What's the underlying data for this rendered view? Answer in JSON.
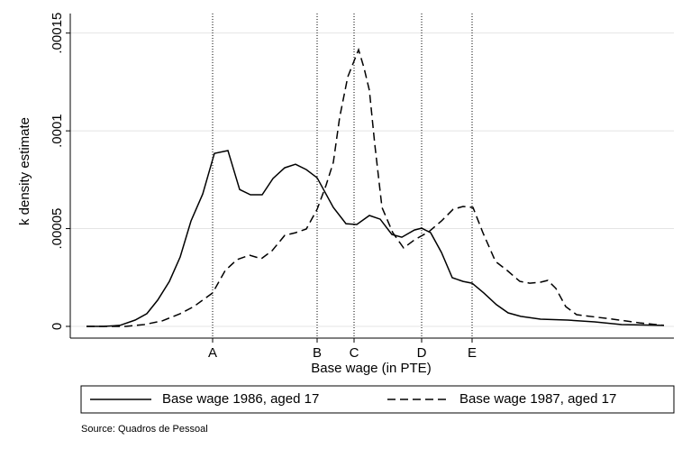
{
  "chart_data": {
    "type": "line",
    "x_label": "Base wage (in PTE)",
    "y_label": "k density estimate",
    "source": "Source: Quadros de Pessoal",
    "xlim": [
      0,
      67
    ],
    "ylim": [
      -6e-06,
      0.00016
    ],
    "xticks": [
      {
        "value": 15.8,
        "label": "A"
      },
      {
        "value": 27.4,
        "label": "B"
      },
      {
        "value": 31.5,
        "label": "C"
      },
      {
        "value": 39,
        "label": "D"
      },
      {
        "value": 44.6,
        "label": "E"
      }
    ],
    "yticks": [
      0,
      {
        "value": 5e-05,
        "label": ".00005"
      },
      {
        "value": 0.0001,
        "label": ".0001"
      },
      {
        "value": 0.00015,
        "label": ".00015"
      }
    ],
    "xgrid": true,
    "ygrid": true,
    "legend": "bottom",
    "series": [
      {
        "name": "Base wage 1986, aged 17",
        "color": "#000000",
        "line_style": "solid",
        "x": [
          1.8,
          3.7,
          5.5,
          7.2,
          8.5,
          9.7,
          11,
          12.2,
          13.4,
          14.7,
          16,
          17.5,
          18.8,
          20,
          21.3,
          22.5,
          23.8,
          25,
          26.2,
          27.4,
          29.2,
          30.6,
          31.8,
          33.2,
          34.4,
          35.7,
          36.8,
          38.2,
          39,
          40,
          41.2,
          42.4,
          43.6,
          44.6,
          45.9,
          47.3,
          48.6,
          50,
          52.2,
          55.2,
          58.2,
          61.2,
          65.9
        ],
        "values": [
          0,
          0,
          5e-07,
          3.2e-06,
          6.5e-06,
          1.34e-05,
          2.3e-05,
          3.55e-05,
          5.39e-05,
          6.77e-05,
          8.85e-05,
          8.99e-05,
          7e-05,
          6.73e-05,
          6.73e-05,
          7.56e-05,
          8.11e-05,
          8.29e-05,
          8.02e-05,
          7.6e-05,
          6.08e-05,
          5.25e-05,
          5.21e-05,
          5.67e-05,
          5.48e-05,
          4.7e-05,
          4.56e-05,
          4.93e-05,
          5.02e-05,
          4.79e-05,
          3.78e-05,
          2.49e-05,
          2.3e-05,
          2.21e-05,
          1.71e-05,
          1.11e-05,
          6.9e-06,
          5.1e-06,
          3.7e-06,
          3.2e-06,
          2.3e-06,
          9e-07,
          5e-07
        ]
      },
      {
        "name": "Base wage 1987, aged 17",
        "color": "#000000",
        "line_style": "dashed",
        "x": [
          1.8,
          6.2,
          8.2,
          10.2,
          12.2,
          13.7,
          15.8,
          17.2,
          18.5,
          19.9,
          21.2,
          22.4,
          23.8,
          25,
          26.2,
          27.4,
          28.4,
          29.2,
          29.9,
          30.8,
          32,
          32.6,
          33.2,
          33.8,
          34.6,
          35.8,
          37,
          38.2,
          39.8,
          41.2,
          42.5,
          43.6,
          44.7,
          45.8,
          47.2,
          48.5,
          49.9,
          51,
          52.2,
          53,
          53.9,
          55,
          56.2,
          60.2,
          63.2,
          65.9
        ],
        "values": [
          0,
          0,
          9e-07,
          2.8e-06,
          6.5e-06,
          1.01e-05,
          1.71e-05,
          2.86e-05,
          3.41e-05,
          3.64e-05,
          3.46e-05,
          3.87e-05,
          4.65e-05,
          4.79e-05,
          4.98e-05,
          5.99e-05,
          7.23e-05,
          8.39e-05,
          0.0001069,
          0.0001276,
          0.0001415,
          0.0001323,
          0.0001207,
          9.31e-05,
          6.08e-05,
          4.79e-05,
          4.01e-05,
          4.42e-05,
          4.84e-05,
          5.39e-05,
          5.99e-05,
          6.13e-05,
          6.08e-05,
          4.79e-05,
          3.32e-05,
          2.86e-05,
          2.3e-05,
          2.21e-05,
          2.26e-05,
          2.35e-05,
          1.94e-05,
          1.01e-05,
          6e-06,
          3.7e-06,
          1.8e-06,
          5e-07
        ]
      }
    ]
  }
}
